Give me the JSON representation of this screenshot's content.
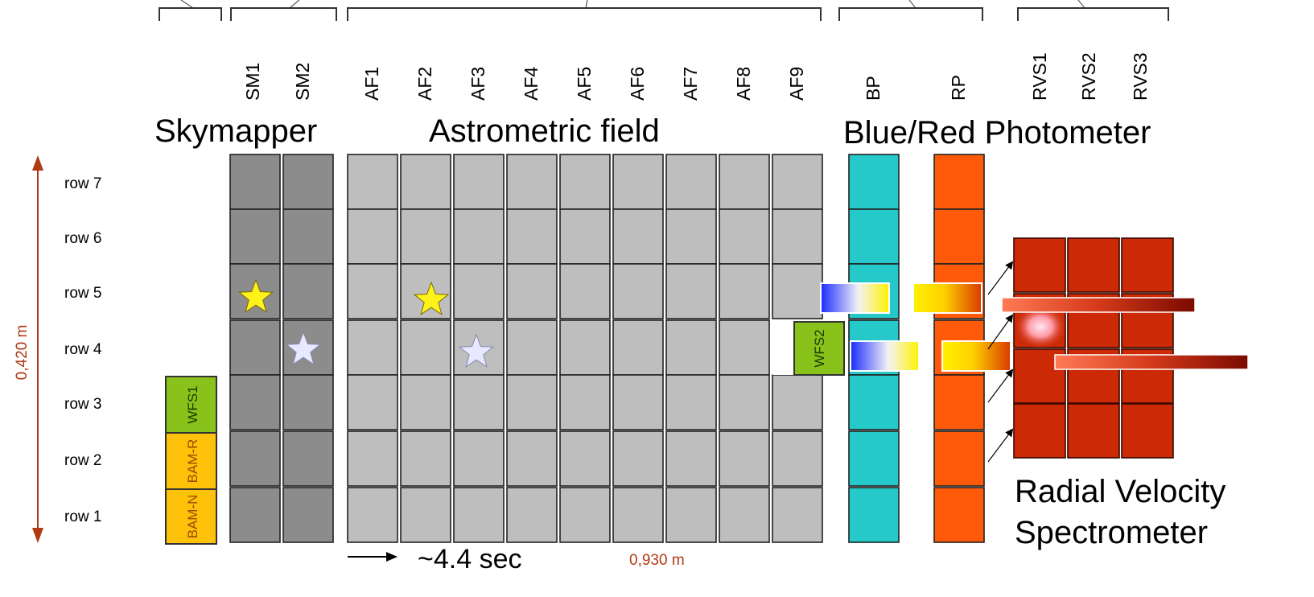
{
  "group_titles": {
    "skymapper": "Skymapper",
    "astrometric": "Astrometric field",
    "photometer": "Blue/Red Photometer",
    "rvs_line1": "Radial Velocity",
    "rvs_line2": "Spectrometer"
  },
  "column_headers": {
    "sm": [
      "SM1",
      "SM2"
    ],
    "af": [
      "AF1",
      "AF2",
      "AF3",
      "AF4",
      "AF5",
      "AF6",
      "AF7",
      "AF8",
      "AF9"
    ],
    "bp": "BP",
    "rp": "RP",
    "rvs": [
      "RVS1",
      "RVS2",
      "RVS3"
    ]
  },
  "rows": [
    "row 7",
    "row 6",
    "row 5",
    "row 4",
    "row 3",
    "row 2",
    "row 1"
  ],
  "height_label": "0,420 m",
  "width_label": "0,930 m",
  "scan_label": "~4.4 sec",
  "special_ccds": {
    "wfs1": "WFS1",
    "bam_r": "BAM-R",
    "bam_n": "BAM-N",
    "wfs2": "WFS2"
  },
  "colors": {
    "sm": "#8c8c8c",
    "af": "#bebebe",
    "bp": "#26c9c9",
    "rp": "#ff5a0a",
    "rvs": "#cc2a06",
    "wfs": "#88c21a",
    "bam": "#ffc20a",
    "dimension": "#b03a12",
    "star_yellow": "#fff21a",
    "star_blue": "#e6e9ff"
  }
}
